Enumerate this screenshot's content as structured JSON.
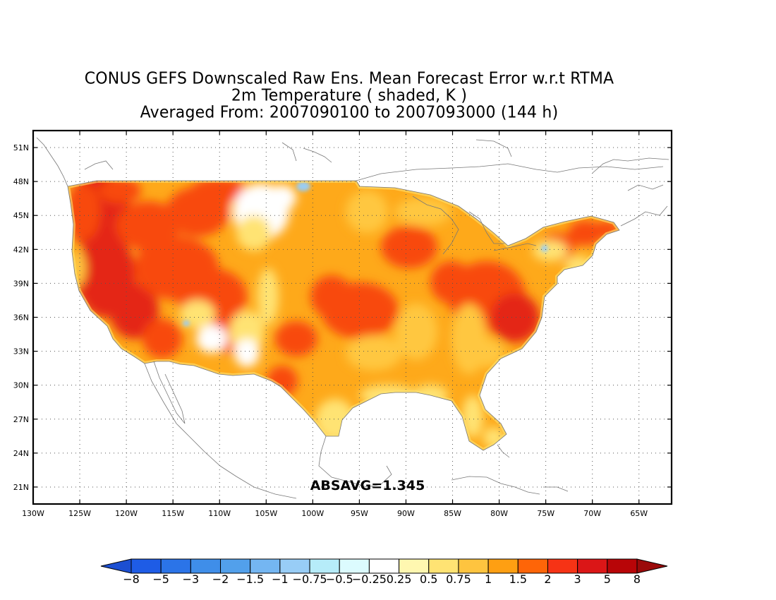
{
  "title": {
    "line1": "CONUS GEFS Downscaled Raw Ens. Mean Forecast Error w.r.t RTMA",
    "line2": "2m Temperature ( shaded, K )",
    "line3": "Averaged From: 2007090100 to 2007093000 (144 h)"
  },
  "stat_label": "ABSAVG=1.345",
  "axes": {
    "lon_ticks": [
      "130W",
      "125W",
      "120W",
      "115W",
      "110W",
      "105W",
      "100W",
      "95W",
      "90W",
      "85W",
      "80W",
      "75W",
      "70W",
      "65W"
    ],
    "lon_values": [
      -130,
      -125,
      -120,
      -115,
      -110,
      -105,
      -100,
      -95,
      -90,
      -85,
      -80,
      -75,
      -70,
      -65
    ],
    "lat_ticks": [
      "51N",
      "48N",
      "45N",
      "42N",
      "39N",
      "36N",
      "33N",
      "30N",
      "27N",
      "24N",
      "21N"
    ],
    "lat_values": [
      51,
      48,
      45,
      42,
      39,
      36,
      33,
      30,
      27,
      24,
      21
    ],
    "lon_range": [
      -130,
      -61.5
    ],
    "lat_range": [
      19.5,
      52.5
    ],
    "grid": "dotted"
  },
  "colorbar": {
    "labels": [
      "-8",
      "-5",
      "-3",
      "-2",
      "-1.5",
      "-1",
      "-0.75",
      "-0.5",
      "-0.25",
      "0.25",
      "0.5",
      "0.75",
      "1",
      "1.5",
      "2",
      "3",
      "5",
      "8"
    ],
    "colors": [
      "#1e5ce6",
      "#2b74e8",
      "#3f8ee9",
      "#52a0eb",
      "#74b6f2",
      "#98cdf6",
      "#b6ecf9",
      "#dcfbfe",
      "#ffffff",
      "#fff7b0",
      "#ffe373",
      "#fec43f",
      "#fe9f12",
      "#fe6508",
      "#f63315",
      "#db1617",
      "#b80508"
    ],
    "extend_low_color": "#1c4fd2",
    "extend_high_color": "#9b0a0a"
  },
  "field_colors": {
    "land_base": "#fea91a",
    "hot": "#f8480f",
    "very_hot": "#e42817",
    "warm": "#ffc73f",
    "mild": "#ffe373",
    "neutral": "#ffffff",
    "cool": "#98cdf6",
    "coast_line": "#777777"
  }
}
